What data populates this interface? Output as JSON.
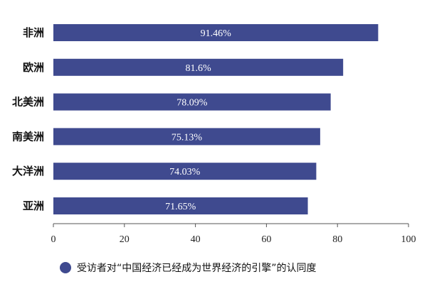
{
  "chart_data": {
    "type": "bar",
    "orientation": "horizontal",
    "categories": [
      "非洲",
      "欧洲",
      "北美洲",
      "南美洲",
      "大洋洲",
      "亚洲"
    ],
    "values": [
      91.46,
      81.6,
      78.09,
      75.13,
      74.03,
      71.65
    ],
    "value_labels": [
      "91.46%",
      "81.6%",
      "78.09%",
      "75.13%",
      "74.03%",
      "71.65%"
    ],
    "xlim": [
      0,
      100
    ],
    "xticks": [
      0,
      20,
      40,
      60,
      80,
      100
    ],
    "grid": false,
    "legend": {
      "position": "bottom",
      "entries": [
        "受访者对“中国经济已经成为世界经济的引擎”的认同度"
      ]
    },
    "colors": {
      "bar": "#3f4a8f",
      "legend_marker": "#3f4a8f",
      "axis": "#555555"
    }
  }
}
